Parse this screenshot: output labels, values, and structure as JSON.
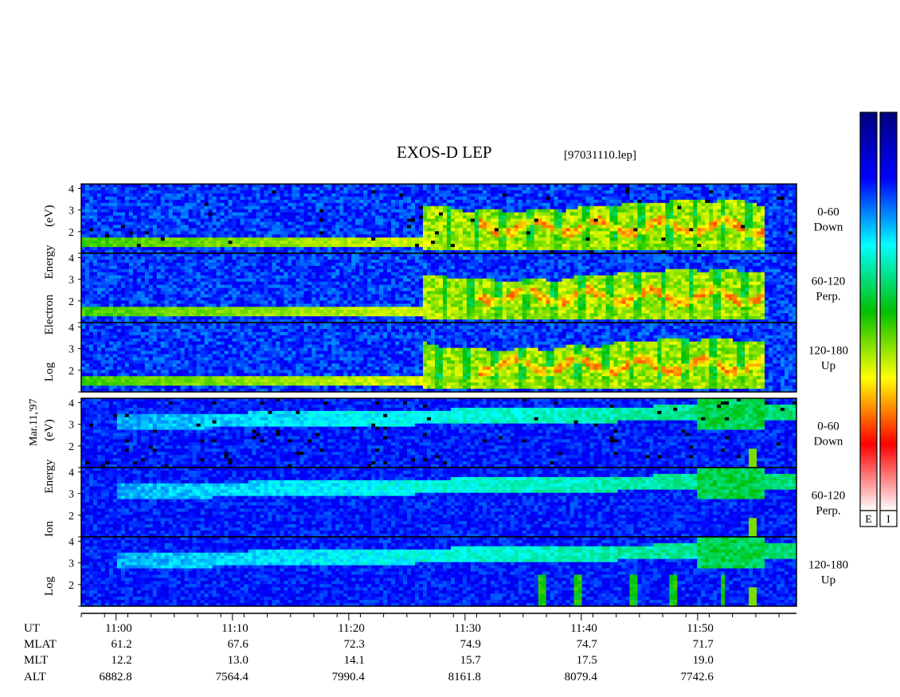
{
  "chart_data": {
    "type": "heatmap",
    "title": "EXOS-D LEP",
    "file_label": "[97031110.lep]",
    "date_label": "Mar.11,'97",
    "x_ticks": [
      "11:00",
      "11:10",
      "11:20",
      "11:30",
      "11:40",
      "11:50"
    ],
    "electron_group": {
      "ylabel_lines": [
        "Log",
        "Electron",
        "Energy",
        "(eV)"
      ],
      "panels": [
        {
          "label": "0-60",
          "sublabel": "Down"
        },
        {
          "label": "60-120",
          "sublabel": "Perp."
        },
        {
          "label": "120-180",
          "sublabel": "Up"
        }
      ]
    },
    "ion_group": {
      "ylabel_lines": [
        "Log",
        "Ion",
        "Energy",
        "(eV)"
      ],
      "panels": [
        {
          "label": "0-60",
          "sublabel": "Down"
        },
        {
          "label": "60-120",
          "sublabel": "Perp."
        },
        {
          "label": "120-180",
          "sublabel": "Up"
        }
      ]
    },
    "y_ticks": [
      "4",
      "3",
      "2"
    ],
    "ylim": [
      1,
      4.2
    ],
    "y_scale": "log10 energy",
    "colorbars": [
      "E",
      "I"
    ],
    "colormap": [
      "#ffffff",
      "#ff0000",
      "#ffff00",
      "#00c000",
      "#00ffff",
      "#0000ff",
      "#00007f"
    ],
    "ephemeris": {
      "rows": [
        {
          "name": "UT",
          "values": [
            "11:00",
            "11:10",
            "11:20",
            "11:30",
            "11:40",
            "11:50"
          ]
        },
        {
          "name": "MLAT",
          "values": [
            "61.2",
            "67.6",
            "72.3",
            "74.9",
            "74.7",
            "71.7"
          ]
        },
        {
          "name": "MLT",
          "values": [
            "12.2",
            "13.0",
            "14.1",
            "15.7",
            "17.5",
            "19.0"
          ]
        },
        {
          "name": "ALT",
          "values": [
            "6882.8",
            "7564.4",
            "7990.4",
            "8161.8",
            "8079.4",
            "7742.6"
          ]
        }
      ]
    }
  }
}
